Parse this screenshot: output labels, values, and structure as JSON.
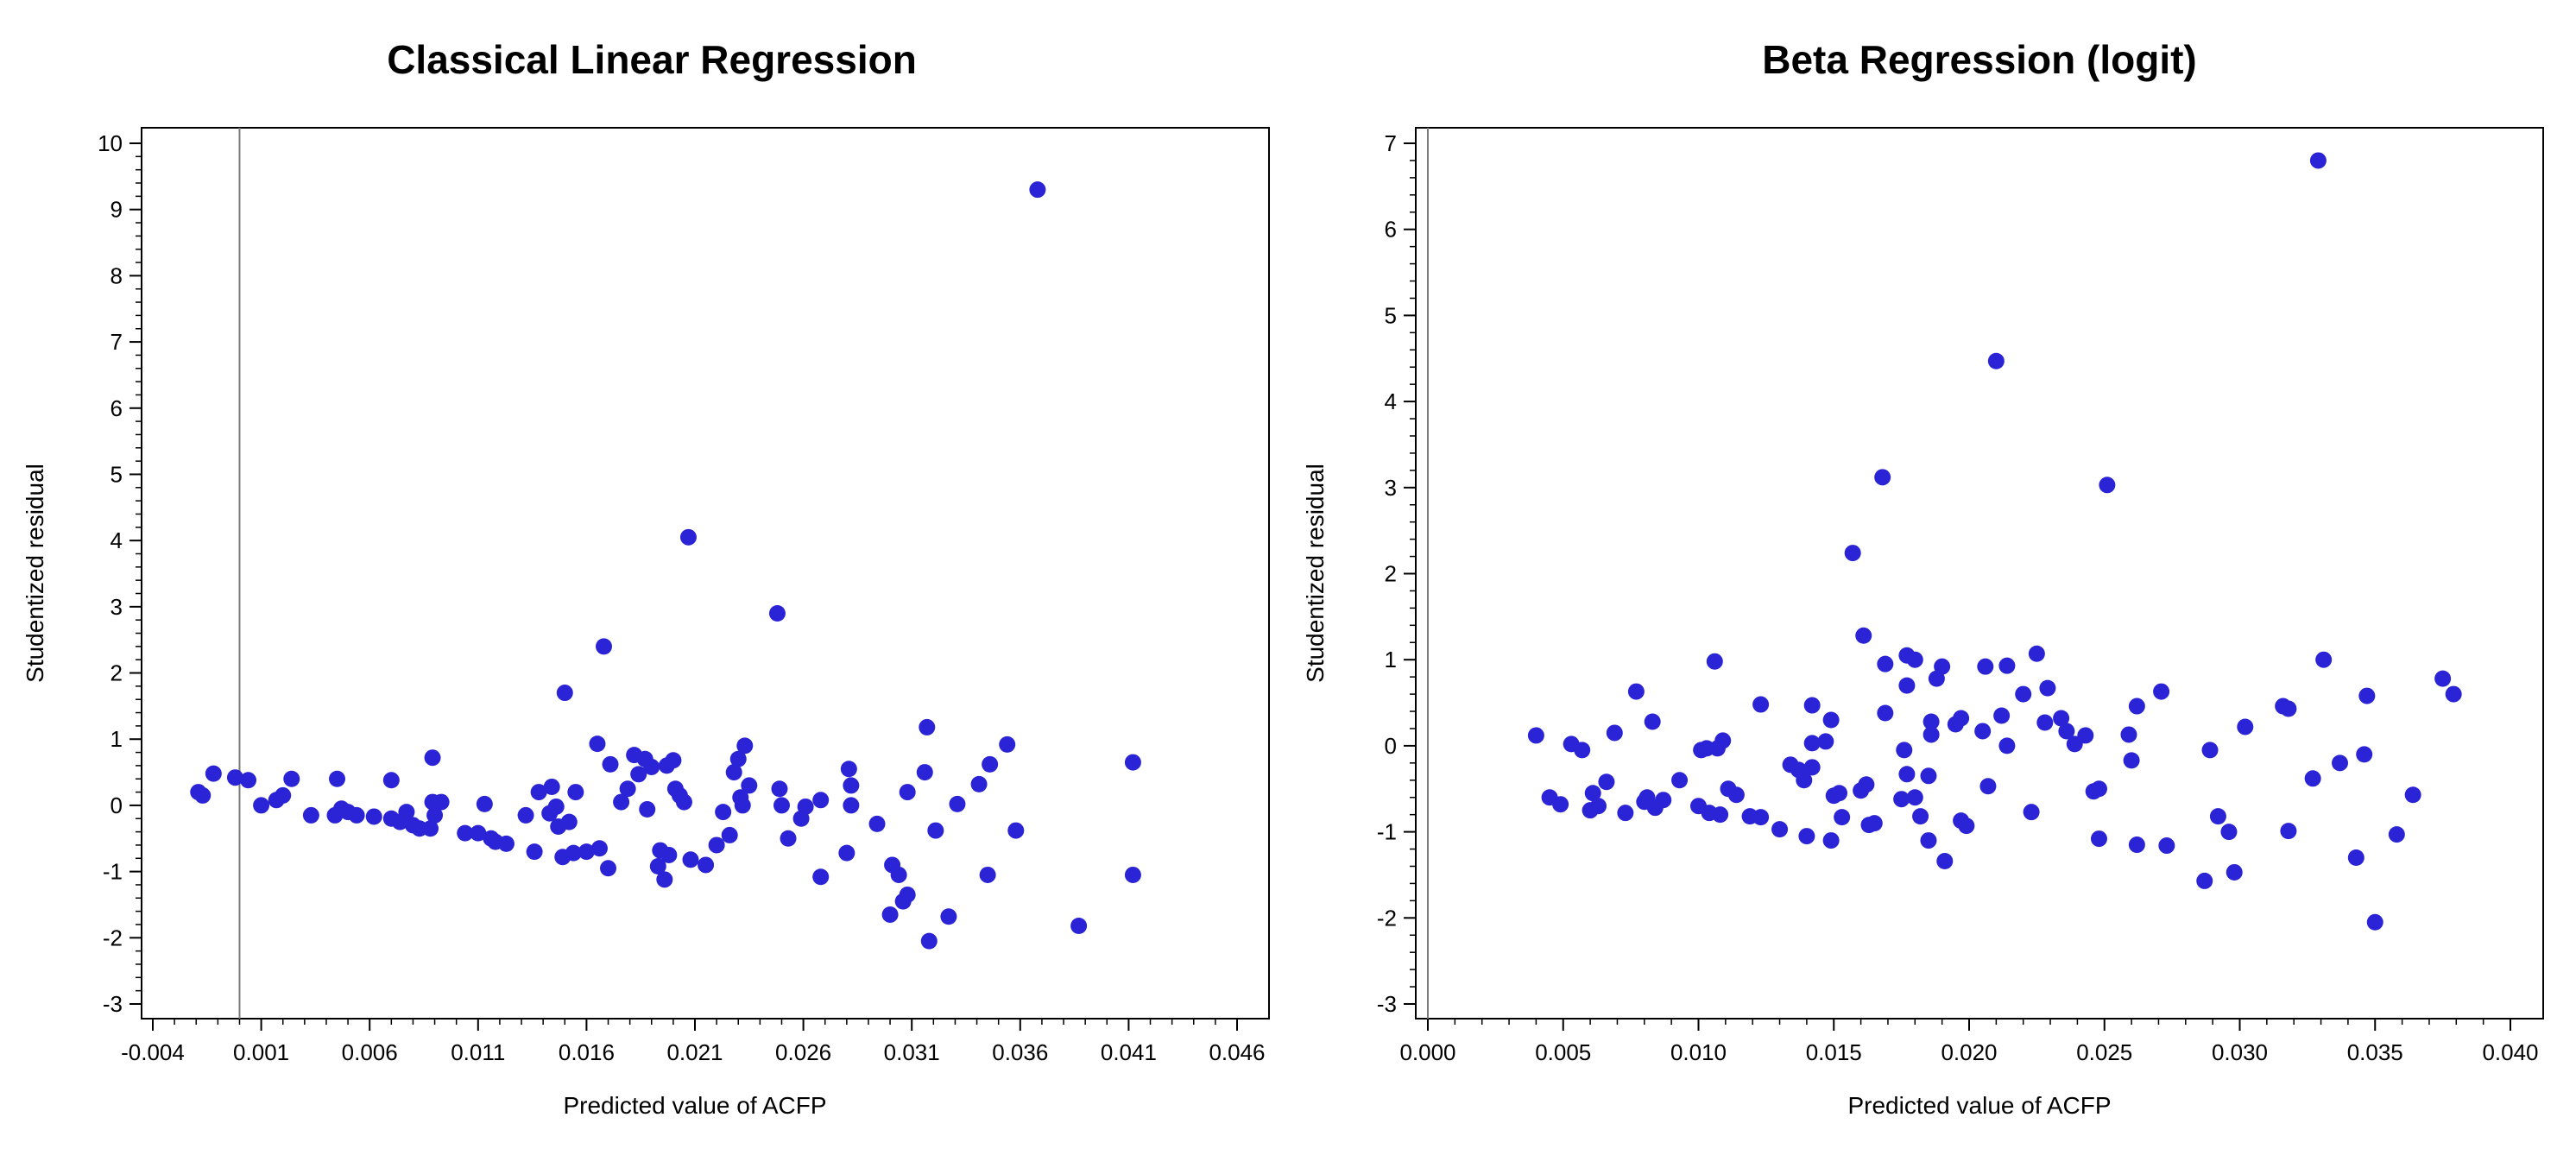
{
  "chart_data": [
    {
      "type": "scatter",
      "title": "Classical Linear Regression",
      "xlabel": "Predicted value of ACFP",
      "ylabel": "Studentized residual",
      "xlim": [
        -0.004,
        0.046
      ],
      "ylim": [
        -3,
        10
      ],
      "xticks": [
        "-0.004",
        "0.001",
        "0.006",
        "0.011",
        "0.016",
        "0.021",
        "0.026",
        "0.031",
        "0.036",
        "0.041",
        "0.046"
      ],
      "yticks": [
        "-3",
        "-2",
        "-1",
        "0",
        "1",
        "2",
        "3",
        "4",
        "5",
        "6",
        "7",
        "8",
        "9",
        "10"
      ],
      "reference_line_x": 0,
      "grid": false,
      "marker_color": "#2b24d6",
      "points": [
        [
          -0.0019,
          0.2
        ],
        [
          -0.0017,
          0.15
        ],
        [
          -0.0012,
          0.48
        ],
        [
          -0.0002,
          0.42
        ],
        [
          0.0004,
          0.38
        ],
        [
          0.001,
          0
        ],
        [
          0.0017,
          0.08
        ],
        [
          0.002,
          0.15
        ],
        [
          0.0024,
          0.4
        ],
        [
          0.0033,
          -0.15
        ],
        [
          0.0044,
          -0.15
        ],
        [
          0.0045,
          0.4
        ],
        [
          0.0047,
          -0.05
        ],
        [
          0.005,
          -0.1
        ],
        [
          0.0054,
          -0.15
        ],
        [
          0.0062,
          -0.17
        ],
        [
          0.007,
          0.38
        ],
        [
          0.007,
          -0.2
        ],
        [
          0.0074,
          -0.25
        ],
        [
          0.0077,
          -0.1
        ],
        [
          0.008,
          -0.3
        ],
        [
          0.0083,
          -0.35
        ],
        [
          0.0088,
          -0.35
        ],
        [
          0.0089,
          0.72
        ],
        [
          0.0089,
          0.05
        ],
        [
          0.0093,
          0.05
        ],
        [
          0.009,
          -0.15
        ],
        [
          0.0104,
          -0.42
        ],
        [
          0.011,
          -0.42
        ],
        [
          0.0113,
          0.02
        ],
        [
          0.0116,
          -0.5
        ],
        [
          0.0118,
          -0.55
        ],
        [
          0.0123,
          -0.58
        ],
        [
          0.0132,
          -0.15
        ],
        [
          0.0136,
          -0.7
        ],
        [
          0.0138,
          0.2
        ],
        [
          0.0143,
          -0.12
        ],
        [
          0.0144,
          0.28
        ],
        [
          0.0146,
          -0.02
        ],
        [
          0.0147,
          -0.32
        ],
        [
          0.015,
          1.7
        ],
        [
          0.0149,
          -0.78
        ],
        [
          0.0152,
          -0.25
        ],
        [
          0.0154,
          -0.72
        ],
        [
          0.0155,
          0.2
        ],
        [
          0.016,
          -0.7
        ],
        [
          0.0165,
          0.93
        ],
        [
          0.0166,
          -0.65
        ],
        [
          0.0168,
          2.4
        ],
        [
          0.017,
          -0.95
        ],
        [
          0.0171,
          0.62
        ],
        [
          0.0176,
          0.05
        ],
        [
          0.0179,
          0.25
        ],
        [
          0.0182,
          0.76
        ],
        [
          0.0184,
          0.47
        ],
        [
          0.0187,
          0.7
        ],
        [
          0.0188,
          -0.06
        ],
        [
          0.019,
          0.58
        ],
        [
          0.0193,
          -0.92
        ],
        [
          0.0194,
          -0.68
        ],
        [
          0.0196,
          -1.12
        ],
        [
          0.0197,
          0.6
        ],
        [
          0.0198,
          -0.75
        ],
        [
          0.02,
          0.68
        ],
        [
          0.0201,
          0.25
        ],
        [
          0.0203,
          0.15
        ],
        [
          0.0205,
          0.05
        ],
        [
          0.0207,
          4.05
        ],
        [
          0.0208,
          -0.82
        ],
        [
          0.0215,
          -0.9
        ],
        [
          0.022,
          -0.6
        ],
        [
          0.0223,
          -0.1
        ],
        [
          0.0226,
          -0.45
        ],
        [
          0.0228,
          0.5
        ],
        [
          0.023,
          0.7
        ],
        [
          0.0231,
          0.12
        ],
        [
          0.0233,
          0.9
        ],
        [
          0.0232,
          0
        ],
        [
          0.0235,
          0.3
        ],
        [
          0.0248,
          2.9
        ],
        [
          0.0249,
          0.25
        ],
        [
          0.025,
          0
        ],
        [
          0.0253,
          -0.5
        ],
        [
          0.0259,
          -0.2
        ],
        [
          0.0261,
          -0.02
        ],
        [
          0.0268,
          -1.08
        ],
        [
          0.0268,
          0.08
        ],
        [
          0.028,
          -0.72
        ],
        [
          0.0281,
          0.55
        ],
        [
          0.0282,
          0.3
        ],
        [
          0.0282,
          0
        ],
        [
          0.0294,
          -0.28
        ],
        [
          0.03,
          -1.65
        ],
        [
          0.0301,
          -0.9
        ],
        [
          0.0304,
          -1.05
        ],
        [
          0.0306,
          -1.45
        ],
        [
          0.0308,
          -1.35
        ],
        [
          0.0308,
          0.2
        ],
        [
          0.0316,
          0.5
        ],
        [
          0.0317,
          1.18
        ],
        [
          0.0318,
          -2.05
        ],
        [
          0.0321,
          -0.38
        ],
        [
          0.0327,
          -1.68
        ],
        [
          0.0331,
          0.02
        ],
        [
          0.0341,
          0.32
        ],
        [
          0.0345,
          -1.05
        ],
        [
          0.0346,
          0.62
        ],
        [
          0.0354,
          0.92
        ],
        [
          0.0358,
          -0.38
        ],
        [
          0.0368,
          9.3
        ],
        [
          0.0387,
          -1.82
        ],
        [
          0.0412,
          0.65
        ],
        [
          0.0412,
          -1.05
        ]
      ]
    },
    {
      "type": "scatter",
      "title": "Beta Regression (logit)",
      "xlabel": "Predicted value of ACFP",
      "ylabel": "Studentized residual",
      "xlim": [
        0,
        0.04
      ],
      "ylim": [
        -3,
        7
      ],
      "xticks": [
        "0.000",
        "0.005",
        "0.010",
        "0.015",
        "0.020",
        "0.025",
        "0.030",
        "0.035",
        "0.040"
      ],
      "yticks": [
        "-3",
        "-2",
        "-1",
        "0",
        "1",
        "2",
        "3",
        "4",
        "5",
        "6",
        "7"
      ],
      "reference_line_x": 0,
      "grid": false,
      "marker_color": "#2b24d6",
      "points": [
        [
          0.004,
          0.12
        ],
        [
          0.0045,
          -0.6
        ],
        [
          0.0049,
          -0.68
        ],
        [
          0.0053,
          0.02
        ],
        [
          0.0057,
          -0.05
        ],
        [
          0.006,
          -0.75
        ],
        [
          0.0061,
          -0.55
        ],
        [
          0.0063,
          -0.7
        ],
        [
          0.0066,
          -0.42
        ],
        [
          0.0069,
          0.15
        ],
        [
          0.0073,
          -0.78
        ],
        [
          0.0077,
          0.63
        ],
        [
          0.008,
          -0.65
        ],
        [
          0.0081,
          -0.6
        ],
        [
          0.0083,
          0.28
        ],
        [
          0.0084,
          -0.72
        ],
        [
          0.0087,
          -0.63
        ],
        [
          0.0093,
          -0.4
        ],
        [
          0.01,
          -0.7
        ],
        [
          0.0101,
          -0.05
        ],
        [
          0.0103,
          -0.03
        ],
        [
          0.0104,
          -0.78
        ],
        [
          0.0106,
          0.98
        ],
        [
          0.0107,
          -0.03
        ],
        [
          0.0108,
          -0.8
        ],
        [
          0.0109,
          0.06
        ],
        [
          0.0111,
          -0.5
        ],
        [
          0.0114,
          -0.57
        ],
        [
          0.0119,
          -0.82
        ],
        [
          0.0123,
          0.48
        ],
        [
          0.0123,
          -0.83
        ],
        [
          0.013,
          -0.97
        ],
        [
          0.0134,
          -0.22
        ],
        [
          0.0137,
          -0.28
        ],
        [
          0.0139,
          -0.4
        ],
        [
          0.014,
          -1.05
        ],
        [
          0.0142,
          -0.25
        ],
        [
          0.0142,
          0.03
        ],
        [
          0.0142,
          0.47
        ],
        [
          0.0147,
          0.05
        ],
        [
          0.0149,
          -1.1
        ],
        [
          0.0149,
          0.3
        ],
        [
          0.015,
          -0.58
        ],
        [
          0.0152,
          -0.55
        ],
        [
          0.0153,
          -0.83
        ],
        [
          0.0157,
          2.24
        ],
        [
          0.016,
          -0.52
        ],
        [
          0.0161,
          1.28
        ],
        [
          0.0162,
          -0.45
        ],
        [
          0.0163,
          -0.92
        ],
        [
          0.0165,
          -0.9
        ],
        [
          0.0168,
          3.12
        ],
        [
          0.0169,
          0.38
        ],
        [
          0.0169,
          0.95
        ],
        [
          0.0175,
          -0.62
        ],
        [
          0.0176,
          -0.05
        ],
        [
          0.0177,
          -0.33
        ],
        [
          0.0177,
          1.05
        ],
        [
          0.0177,
          0.7
        ],
        [
          0.018,
          1.0
        ],
        [
          0.018,
          -0.6
        ],
        [
          0.0182,
          -0.82
        ],
        [
          0.0185,
          -0.35
        ],
        [
          0.0185,
          -1.1
        ],
        [
          0.0186,
          0.28
        ],
        [
          0.0186,
          0.13
        ],
        [
          0.0188,
          0.78
        ],
        [
          0.019,
          0.92
        ],
        [
          0.0191,
          -1.34
        ],
        [
          0.0195,
          0.25
        ],
        [
          0.0197,
          0.32
        ],
        [
          0.0197,
          -0.87
        ],
        [
          0.0199,
          -0.93
        ],
        [
          0.0205,
          0.17
        ],
        [
          0.0206,
          0.92
        ],
        [
          0.0207,
          -0.47
        ],
        [
          0.021,
          4.47
        ],
        [
          0.0212,
          0.35
        ],
        [
          0.0214,
          0.93
        ],
        [
          0.0214,
          0
        ],
        [
          0.022,
          0.6
        ],
        [
          0.0225,
          1.07
        ],
        [
          0.0223,
          -0.77
        ],
        [
          0.0228,
          0.27
        ],
        [
          0.0229,
          0.67
        ],
        [
          0.0234,
          0.32
        ],
        [
          0.0236,
          0.17
        ],
        [
          0.0239,
          0.02
        ],
        [
          0.0243,
          0.12
        ],
        [
          0.0246,
          -0.53
        ],
        [
          0.0248,
          -0.5
        ],
        [
          0.0248,
          -1.08
        ],
        [
          0.0251,
          3.03
        ],
        [
          0.0259,
          0.13
        ],
        [
          0.026,
          -0.17
        ],
        [
          0.0262,
          0.46
        ],
        [
          0.0262,
          -1.15
        ],
        [
          0.0271,
          0.63
        ],
        [
          0.0273,
          -1.16
        ],
        [
          0.0287,
          -1.57
        ],
        [
          0.0289,
          -0.05
        ],
        [
          0.0292,
          -0.82
        ],
        [
          0.0296,
          -1.0
        ],
        [
          0.0298,
          -1.47
        ],
        [
          0.0302,
          0.22
        ],
        [
          0.0316,
          0.46
        ],
        [
          0.0318,
          0.43
        ],
        [
          0.0318,
          -0.99
        ],
        [
          0.0327,
          -0.38
        ],
        [
          0.0329,
          6.8
        ],
        [
          0.0331,
          1.0
        ],
        [
          0.0337,
          -0.2
        ],
        [
          0.0343,
          -1.3
        ],
        [
          0.0346,
          -0.1
        ],
        [
          0.0347,
          0.58
        ],
        [
          0.035,
          -2.05
        ],
        [
          0.0358,
          -1.03
        ],
        [
          0.0364,
          -0.57
        ],
        [
          0.0375,
          0.78
        ],
        [
          0.0379,
          0.6
        ]
      ]
    }
  ]
}
